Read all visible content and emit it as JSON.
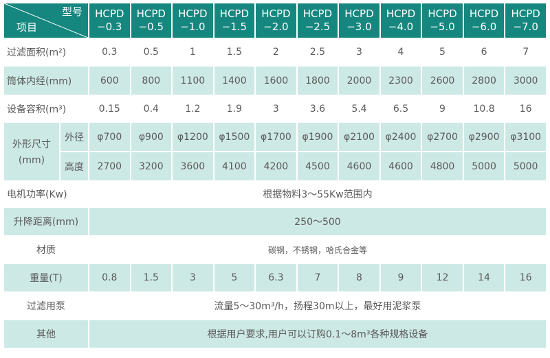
{
  "header": {
    "corner_top": "型号",
    "corner_bottom": "项目",
    "models": [
      "HCPD\n−0.3",
      "HCPD\n−0.5",
      "HCPD\n−1.0",
      "HCPD\n−1.5",
      "HCPD\n−2.0",
      "HCPD\n−2.5",
      "HCPD\n−3.0",
      "HCPD\n−4.0",
      "HCPD\n−5.0",
      "HCPD\n−6.0",
      "HCPD\n−7.0"
    ]
  },
  "rows": {
    "filter_area": {
      "label": "过滤面积(m²)",
      "values": [
        "0.3",
        "0.5",
        "1",
        "1.5",
        "2",
        "2.5",
        "3",
        "4",
        "5",
        "6",
        "7"
      ]
    },
    "inner_diameter": {
      "label": "筒体内经(mm)",
      "values": [
        "600",
        "800",
        "1100",
        "1400",
        "1600",
        "1800",
        "2000",
        "2300",
        "2600",
        "2800",
        "3000"
      ]
    },
    "volume": {
      "label": "设备容积(m³)",
      "values": [
        "0.15",
        "0.4",
        "1.2",
        "1.9",
        "3",
        "3.6",
        "5.4",
        "6.5",
        "9",
        "10.8",
        "16"
      ]
    },
    "dimensions": {
      "label": "外形尺寸",
      "unit": "(mm)",
      "outer": {
        "label": "外径",
        "values": [
          "φ700",
          "φ900",
          "φ1200",
          "φ1500",
          "φ1700",
          "φ1900",
          "φ2100",
          "φ2400",
          "φ2700",
          "φ2900",
          "φ3100"
        ]
      },
      "height": {
        "label": "高度",
        "values": [
          "2700",
          "3200",
          "3600",
          "4100",
          "4200",
          "4500",
          "4600",
          "4600",
          "4800",
          "5000",
          "5000"
        ]
      }
    },
    "motor": {
      "label": "电机功率(Kw)",
      "value": "根据物料3～55Kw范围内"
    },
    "lift": {
      "label": "升降距离(mm)",
      "value": "250～500"
    },
    "material": {
      "label": "材质",
      "value": "碳钢，不锈钢，哈氏合金等"
    },
    "weight": {
      "label": "重量(T)",
      "values": [
        "0.8",
        "1.5",
        "3",
        "5",
        "6.3",
        "7",
        "8",
        "9",
        "12",
        "14",
        "16"
      ]
    },
    "pump": {
      "label": "过滤用泵",
      "value": "流量5～30m³/h，扬程30m以上，最好用泥浆泵"
    },
    "other": {
      "label": "其他",
      "value": "根据用户要求,用户可以订购0.1～8m³各种规格设备"
    }
  },
  "colors": {
    "header": "#16877f",
    "stripe": "#cde9e6",
    "text": "#5a5a5a"
  }
}
